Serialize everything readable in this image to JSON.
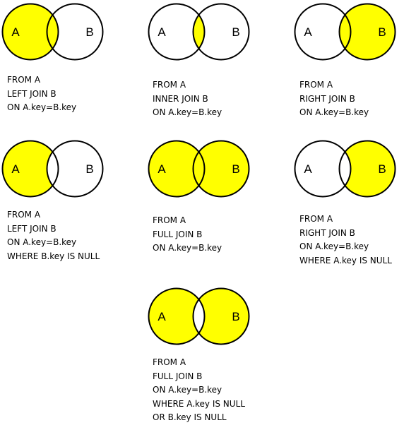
{
  "colors": {
    "fill": "#ffff00",
    "stroke": "#000000",
    "background": "#ffffff"
  },
  "diagrams": [
    {
      "id": "left-join",
      "label_a": "A",
      "label_b": "B",
      "regions": [
        "a_only",
        "both"
      ],
      "sql": [
        "FROM A",
        "LEFT JOIN B",
        "ON A.key=B.key"
      ]
    },
    {
      "id": "inner-join",
      "label_a": "A",
      "label_b": "B",
      "regions": [
        "both"
      ],
      "sql": [
        "FROM A",
        "INNER JOIN B",
        "ON A.key=B.key"
      ]
    },
    {
      "id": "right-join",
      "label_a": "A",
      "label_b": "B",
      "regions": [
        "b_only",
        "both"
      ],
      "sql": [
        "FROM A",
        "RIGHT JOIN B",
        "ON A.key=B.key"
      ]
    },
    {
      "id": "left-join-exclusive",
      "label_a": "A",
      "label_b": "B",
      "regions": [
        "a_only"
      ],
      "sql": [
        "FROM A",
        "LEFT JOIN B",
        "ON A.key=B.key",
        "WHERE B.key IS NULL"
      ]
    },
    {
      "id": "full-join",
      "label_a": "A",
      "label_b": "B",
      "regions": [
        "a_only",
        "both",
        "b_only"
      ],
      "sql": [
        "FROM A",
        "FULL JOIN B",
        "ON A.key=B.key"
      ]
    },
    {
      "id": "right-join-exclusive",
      "label_a": "A",
      "label_b": "B",
      "regions": [
        "b_only"
      ],
      "sql": [
        "FROM A",
        "RIGHT JOIN B",
        "ON A.key=B.key",
        "WHERE A.key IS NULL"
      ]
    },
    {
      "id": "full-join-exclusive",
      "label_a": "A",
      "label_b": "B",
      "regions": [
        "a_only",
        "b_only"
      ],
      "sql": [
        "FROM A",
        "FULL JOIN B",
        "ON A.key=B.key",
        "WHERE A.key IS NULL",
        "OR B.key IS NULL"
      ]
    }
  ]
}
